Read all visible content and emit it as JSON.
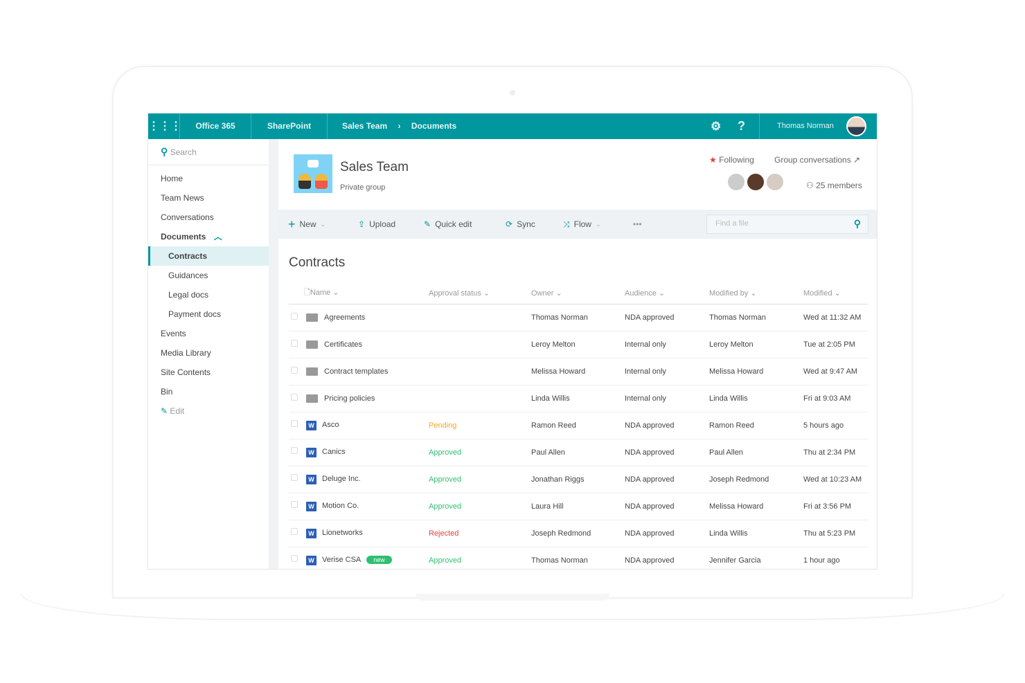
{
  "topbar": {
    "apps_icon": "waffle-icon",
    "office": "Office 365",
    "sharepoint": "SharePoint",
    "crumb1": "Sales Team",
    "crumb_sep": "›",
    "crumb2": "Documents",
    "settings_icon": "gear-icon",
    "help": "?",
    "user": "Thomas Norman",
    "accent": "#00979f"
  },
  "sidebar": {
    "search_placeholder": "Search",
    "items": [
      "Home",
      "Team News",
      "Conversations",
      "Documents",
      "Contracts",
      "Guidances",
      "Legal docs",
      "Payment docs",
      "Events",
      "Media Library",
      "Site Contents",
      "Bin"
    ],
    "edit": "Edit"
  },
  "header": {
    "site_title": "Sales Team",
    "site_subtitle": "Private group",
    "following": "Following",
    "group_conversations": "Group conversations ↗",
    "members": "25 members"
  },
  "toolbar": {
    "new": "New",
    "upload": "Upload",
    "quick_edit": "Quick edit",
    "sync": "Sync",
    "flow": "Flow",
    "more": "•••",
    "find_placeholder": "Find a file"
  },
  "library": {
    "title": "Contracts",
    "columns": [
      "Name",
      "Approval status",
      "Owner",
      "Audience",
      "Modified by",
      "Modified"
    ],
    "rows": [
      {
        "type": "folder",
        "name": "Agreements",
        "status": "",
        "owner": "Thomas Norman",
        "audience": "NDA approved",
        "modified_by": "Thomas Norman",
        "modified": "Wed at 11:32 AM"
      },
      {
        "type": "folder",
        "name": "Certificates",
        "status": "",
        "owner": "Leroy Melton",
        "audience": "Internal only",
        "modified_by": "Leroy Melton",
        "modified": "Tue at 2:05 PM"
      },
      {
        "type": "folder",
        "name": "Contract templates",
        "status": "",
        "owner": "Melissa Howard",
        "audience": "Internal only",
        "modified_by": "Melissa Howard",
        "modified": "Wed at 9:47 AM"
      },
      {
        "type": "folder",
        "name": "Pricing policies",
        "status": "",
        "owner": "Linda Willis",
        "audience": "Internal only",
        "modified_by": "Linda Willis",
        "modified": "Fri at 9:03 AM"
      },
      {
        "type": "word",
        "name": "Asco",
        "status": "Pending",
        "owner": "Ramon Reed",
        "audience": "NDA approved",
        "modified_by": "Ramon Reed",
        "modified": "5 hours ago"
      },
      {
        "type": "word",
        "name": "Canics",
        "status": "Approved",
        "owner": "Paul Allen",
        "audience": "NDA approved",
        "modified_by": "Paul Allen",
        "modified": "Thu at 2:34 PM"
      },
      {
        "type": "word",
        "name": "Deluge Inc.",
        "status": "Approved",
        "owner": "Jonathan Riggs",
        "audience": "NDA approved",
        "modified_by": "Joseph Redmond",
        "modified": "Wed at 10:23 AM"
      },
      {
        "type": "word",
        "name": "Motion Co.",
        "status": "Approved",
        "owner": "Laura Hill",
        "audience": "NDA approved",
        "modified_by": "Melissa Howard",
        "modified": "Fri at 3:56 PM"
      },
      {
        "type": "word",
        "name": "Lionetworks",
        "status": "Rejected",
        "owner": "Joseph Redmond",
        "audience": "NDA approved",
        "modified_by": "Linda Willis",
        "modified": "Thu at 5:23 PM"
      },
      {
        "type": "word",
        "name": "Verise CSA",
        "badge": "new",
        "status": "Approved",
        "owner": "Thomas Norman",
        "audience": "NDA approved",
        "modified_by": "Jennifer Garcia",
        "modified": "1 hour ago"
      }
    ]
  },
  "status_colors": {
    "Pending": "#f5a623",
    "Approved": "#2fbf71",
    "Rejected": "#e8403a"
  }
}
